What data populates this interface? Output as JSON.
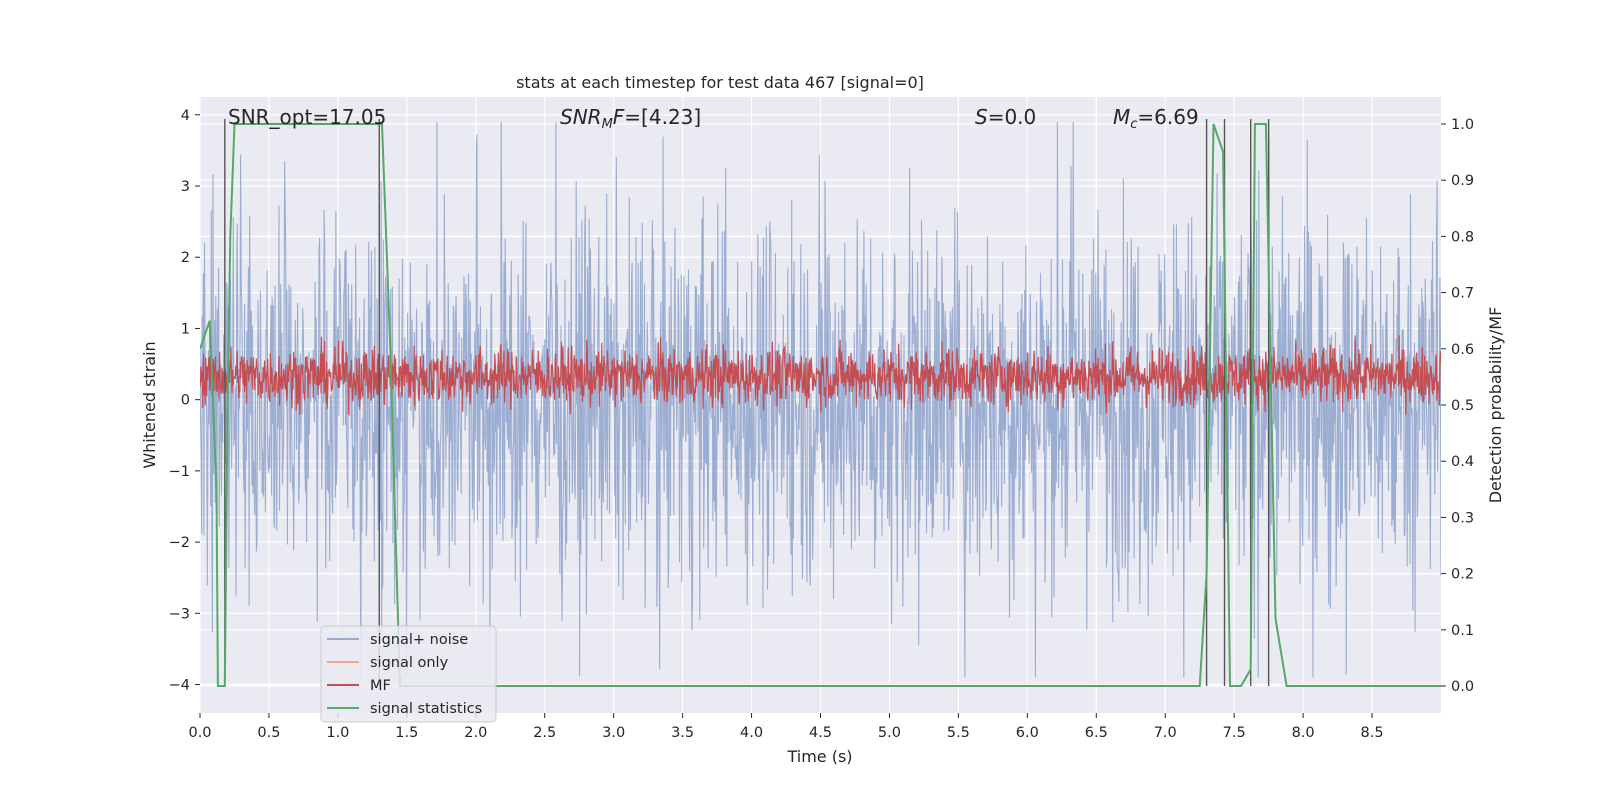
{
  "chart_data": {
    "type": "line",
    "title": "stats at each timestep for test data 467 [signal=0]",
    "xlabel": "Time (s)",
    "ylabel": "Whitened strain",
    "y2label": "Detection probability/MF",
    "xlim": [
      0.0,
      9.0
    ],
    "ylim": [
      -4.4,
      4.25
    ],
    "y2lim": [
      -0.048,
      1.048
    ],
    "x_ticks": [
      0.0,
      0.5,
      1.0,
      1.5,
      2.0,
      2.5,
      3.0,
      3.5,
      4.0,
      4.5,
      5.0,
      5.5,
      6.0,
      6.5,
      7.0,
      7.5,
      8.0,
      8.5
    ],
    "x_tick_labels": [
      "0.0",
      "0.5",
      "1.0",
      "1.5",
      "2.0",
      "2.5",
      "3.0",
      "3.5",
      "4.0",
      "4.5",
      "5.0",
      "5.5",
      "6.0",
      "6.5",
      "7.0",
      "7.5",
      "8.0",
      "8.5"
    ],
    "y_ticks": [
      4,
      3,
      2,
      1,
      0,
      -1,
      -2,
      -3,
      -4
    ],
    "y_tick_labels": [
      "4",
      "3",
      "2",
      "1",
      "0",
      "−1",
      "−2",
      "−3",
      "−4"
    ],
    "y2_ticks": [
      1.0,
      0.9,
      0.8,
      0.7,
      0.6,
      0.5,
      0.4,
      0.3,
      0.2,
      0.1,
      0.0
    ],
    "y2_tick_labels": [
      "1.0",
      "0.9",
      "0.8",
      "0.7",
      "0.6",
      "0.5",
      "0.4",
      "0.3",
      "0.2",
      "0.1",
      "0.0"
    ],
    "annotations": {
      "snr_opt": "SNR_opt=17.05",
      "snr_mf_label": "SNR",
      "snr_mf_sub": "M",
      "snr_mf_tail": "F",
      "snr_mf_value": "=[4.23]",
      "s_label": "S",
      "s_value": "=0.0",
      "mc_label": "M",
      "mc_sub": "c",
      "mc_value": "=6.69"
    },
    "series": [
      {
        "name": "signal+ noise",
        "color": "#98aad0",
        "envelope": {
          "amplitude_typical": 1.7,
          "amplitude_max": 3.9
        }
      },
      {
        "name": "signal only",
        "color": "#eea98f",
        "values": []
      },
      {
        "name": "MF",
        "color": "#c44e52",
        "envelope": {
          "center": 0.33,
          "amplitude_typical": 0.35,
          "amplitude_max": 0.65
        }
      },
      {
        "name": "signal statistics",
        "color": "#55a868",
        "axis": "right",
        "points": [
          [
            0.0,
            0.6
          ],
          [
            0.07,
            0.65
          ],
          [
            0.12,
            0.35
          ],
          [
            0.13,
            0.0
          ],
          [
            0.18,
            0.0
          ],
          [
            0.2,
            0.5
          ],
          [
            0.22,
            0.8
          ],
          [
            0.25,
            1.0
          ],
          [
            1.32,
            1.0
          ],
          [
            1.38,
            0.6
          ],
          [
            1.45,
            0.0
          ],
          [
            7.25,
            0.0
          ],
          [
            7.3,
            0.2
          ],
          [
            7.35,
            1.0
          ],
          [
            7.42,
            0.95
          ],
          [
            7.47,
            0.0
          ],
          [
            7.55,
            0.0
          ],
          [
            7.62,
            0.03
          ],
          [
            7.65,
            1.0
          ],
          [
            7.73,
            1.0
          ],
          [
            7.8,
            0.12
          ],
          [
            7.88,
            0.0
          ],
          [
            9.0,
            0.0
          ]
        ]
      }
    ],
    "vertical_lines": [
      0.18,
      1.3,
      7.3,
      7.43,
      7.62,
      7.75
    ],
    "legend": {
      "position": "lower-left",
      "entries": [
        "signal+ noise",
        "signal only",
        "MF",
        "signal statistics"
      ]
    },
    "background": "#eaeaf2",
    "grid_color": "#ffffff"
  }
}
